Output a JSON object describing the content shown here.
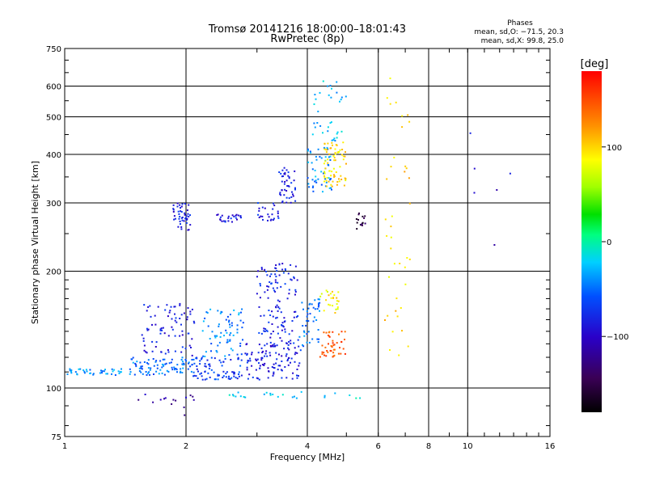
{
  "chart_data": {
    "type": "scatter",
    "title": "Tromsø 20141216 18:00:00–18:01:43",
    "subtitle": "RwPretec (8p)",
    "stats_heading": "Phases",
    "stats_lines": [
      "mean, sd,O: −71.5, 20.3",
      "mean, sd,X:  99.8, 25.0"
    ],
    "xlabel": "Frequency [MHz]",
    "ylabel": "Stationary phase Virtual Height [km]",
    "x_scale": "log",
    "y_scale": "log",
    "xlim": [
      1,
      16
    ],
    "ylim": [
      75,
      750
    ],
    "x_ticks": [
      1,
      2,
      4,
      6,
      8,
      10,
      16
    ],
    "x_tick_labels": [
      "1",
      "2",
      "4",
      "6",
      "8",
      "10",
      "16"
    ],
    "y_ticks": [
      75,
      100,
      200,
      300,
      400,
      500,
      600,
      750
    ],
    "y_tick_labels": [
      "75",
      "100",
      "200",
      "300",
      "400",
      "500",
      "600",
      "750"
    ],
    "grid": true,
    "colorbar": {
      "label": "[deg]",
      "range": [
        -180,
        180
      ],
      "ticks": [
        100,
        0,
        -100
      ],
      "tick_labels": [
        "100",
        "0",
        "−100"
      ]
    },
    "clusters": [
      {
        "x": [
          1.0,
          1.4
        ],
        "y": [
          108,
          112
        ],
        "phase": -40,
        "count": 40
      },
      {
        "x": [
          1.45,
          2.1
        ],
        "y": [
          108,
          120
        ],
        "phase": -50,
        "count": 90
      },
      {
        "x": [
          1.55,
          2.1
        ],
        "y": [
          120,
          165
        ],
        "phase": -85,
        "count": 80
      },
      {
        "x": [
          1.85,
          2.05
        ],
        "y": [
          255,
          300
        ],
        "phase": -85,
        "count": 45
      },
      {
        "x": [
          2.05,
          2.75
        ],
        "y": [
          105,
          120
        ],
        "phase": -70,
        "count": 80
      },
      {
        "x": [
          2.2,
          2.8
        ],
        "y": [
          120,
          160
        ],
        "phase": -45,
        "count": 70
      },
      {
        "x": [
          2.35,
          2.75
        ],
        "y": [
          268,
          280
        ],
        "phase": -85,
        "count": 25
      },
      {
        "x": [
          2.8,
          3.85
        ],
        "y": [
          105,
          130
        ],
        "phase": -85,
        "count": 110
      },
      {
        "x": [
          3.0,
          3.8
        ],
        "y": [
          130,
          210
        ],
        "phase": -80,
        "count": 120
      },
      {
        "x": [
          3.0,
          3.4
        ],
        "y": [
          270,
          300
        ],
        "phase": -80,
        "count": 25
      },
      {
        "x": [
          3.4,
          3.75
        ],
        "y": [
          300,
          370
        ],
        "phase": -85,
        "count": 45
      },
      {
        "x": [
          3.8,
          4.3
        ],
        "y": [
          125,
          170
        ],
        "phase": -50,
        "count": 45
      },
      {
        "x": [
          4.0,
          4.6
        ],
        "y": [
          320,
          420
        ],
        "phase": -40,
        "count": 50
      },
      {
        "x": [
          4.4,
          5.0
        ],
        "y": [
          330,
          430
        ],
        "phase": 95,
        "count": 70
      },
      {
        "x": [
          4.3,
          5.0
        ],
        "y": [
          120,
          140
        ],
        "phase": 145,
        "count": 45
      },
      {
        "x": [
          4.3,
          4.8
        ],
        "y": [
          155,
          180
        ],
        "phase": 90,
        "count": 25
      },
      {
        "x": [
          4.1,
          5.0
        ],
        "y": [
          430,
          620
        ],
        "phase": -30,
        "count": 35
      },
      {
        "x": [
          5.3,
          5.7
        ],
        "y": [
          255,
          285
        ],
        "phase": -150,
        "count": 15
      },
      {
        "x": [
          6.2,
          7.3
        ],
        "y": [
          120,
          640
        ],
        "phase": 100,
        "count": 40
      },
      {
        "x": [
          10.0,
          13.0
        ],
        "y": [
          230,
          480
        ],
        "phase": -100,
        "count": 6
      },
      {
        "x": [
          1.5,
          2.1
        ],
        "y": [
          85,
          97
        ],
        "phase": -110,
        "count": 15
      },
      {
        "x": [
          2.5,
          5.5
        ],
        "y": [
          94,
          98
        ],
        "phase": -20,
        "count": 25
      }
    ]
  }
}
